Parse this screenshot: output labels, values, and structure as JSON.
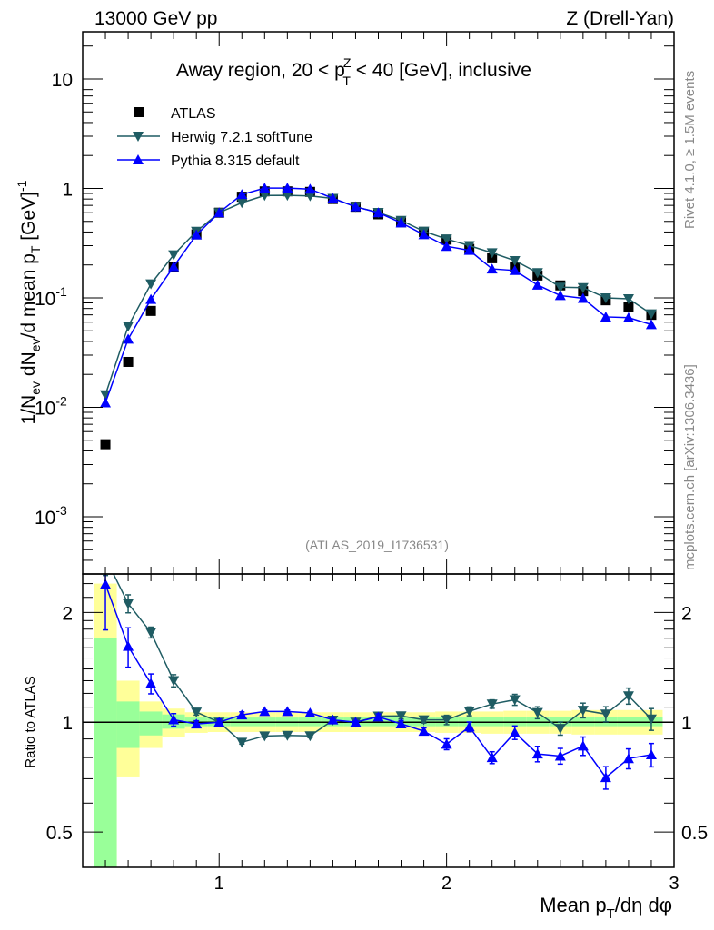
{
  "chart_data": {
    "type": "line",
    "header_left": "13000 GeV pp",
    "header_right": "Z (Drell-Yan)",
    "title": {
      "pre": "Away region, 20 < p",
      "sup": "Z",
      "sub": "T",
      "post": " < 40 [GeV], inclusive"
    },
    "ylabel": {
      "a": "1/N",
      "a_sub": "ev",
      "b": " dN",
      "b_sub": "ev",
      "c": "/d mean p",
      "c_sub": "T",
      "d": " [GeV]",
      "d_sup": "-1"
    },
    "ratio_ylabel": "Ratio to ATLAS",
    "xlabel": {
      "a": "Mean p",
      "a_sub": "T",
      "b": "/dη dφ"
    },
    "side_text_top": "Rivet 4.1.0, ≥ 1.5M events",
    "side_text_bottom": "mcplots.cern.ch [arXiv:1306.3436]",
    "analysis_id": "(ATLAS_2019_I1736531)",
    "xlim": [
      0.4,
      3.0
    ],
    "ylim": [
      0.0003,
      27
    ],
    "ratio_ylim": [
      0.4,
      2.55
    ],
    "yscale": "log",
    "x_ticks": [
      {
        "v": 1,
        "label": "1"
      },
      {
        "v": 2,
        "label": "2"
      },
      {
        "v": 3,
        "label": "3"
      }
    ],
    "y_ticks": [
      {
        "v": 10,
        "base": "10",
        "exp": ""
      },
      {
        "v": 1,
        "base": "1",
        "exp": ""
      },
      {
        "v": 0.1,
        "base": "10",
        "exp": "-1"
      },
      {
        "v": 0.01,
        "base": "10",
        "exp": "-2"
      },
      {
        "v": 0.001,
        "base": "10",
        "exp": "-3"
      }
    ],
    "ratio_y_ticks": [
      {
        "v": 2,
        "label": "2"
      },
      {
        "v": 1,
        "label": "1"
      },
      {
        "v": 0.5,
        "label": "0.5"
      }
    ],
    "legend_position": "top-left",
    "x": [
      0.5,
      0.6,
      0.7,
      0.8,
      0.9,
      1.0,
      1.1,
      1.2,
      1.3,
      1.4,
      1.5,
      1.6,
      1.7,
      1.8,
      1.9,
      2.0,
      2.1,
      2.2,
      2.3,
      2.4,
      2.5,
      2.6,
      2.7,
      2.8,
      2.9
    ],
    "series": [
      {
        "name": "ATLAS",
        "color": "#000000",
        "marker": "square",
        "values": [
          0.0046,
          0.026,
          0.076,
          0.19,
          0.38,
          0.6,
          0.84,
          0.94,
          0.94,
          0.93,
          0.8,
          0.68,
          0.58,
          0.49,
          0.4,
          0.34,
          0.28,
          0.23,
          0.19,
          0.16,
          0.13,
          0.115,
          0.095,
          0.083,
          0.07
        ],
        "band_stat": [
          [
            0.4,
            1.7
          ],
          [
            0.85,
            1.14
          ],
          [
            0.92,
            1.07
          ],
          [
            0.96,
            1.05
          ],
          [
            0.975,
            1.03
          ],
          [
            0.975,
            1.03
          ],
          [
            0.975,
            1.03
          ],
          [
            0.975,
            1.03
          ],
          [
            0.975,
            1.03
          ],
          [
            0.975,
            1.03
          ],
          [
            0.975,
            1.03
          ],
          [
            0.975,
            1.03
          ],
          [
            0.975,
            1.03
          ],
          [
            0.975,
            1.03
          ],
          [
            0.975,
            1.03
          ],
          [
            0.975,
            1.03
          ],
          [
            0.975,
            1.03
          ],
          [
            0.975,
            1.035
          ],
          [
            0.975,
            1.035
          ],
          [
            0.975,
            1.035
          ],
          [
            0.975,
            1.035
          ],
          [
            0.975,
            1.035
          ],
          [
            0.975,
            1.035
          ],
          [
            0.975,
            1.035
          ],
          [
            0.975,
            1.035
          ]
        ],
        "band_total": [
          [
            0.4,
            2.4
          ],
          [
            0.71,
            1.3
          ],
          [
            0.85,
            1.14
          ],
          [
            0.91,
            1.09
          ],
          [
            0.935,
            1.065
          ],
          [
            0.94,
            1.065
          ],
          [
            0.94,
            1.065
          ],
          [
            0.94,
            1.065
          ],
          [
            0.94,
            1.065
          ],
          [
            0.94,
            1.065
          ],
          [
            0.94,
            1.065
          ],
          [
            0.94,
            1.065
          ],
          [
            0.94,
            1.065
          ],
          [
            0.94,
            1.065
          ],
          [
            0.94,
            1.065
          ],
          [
            0.935,
            1.07
          ],
          [
            0.935,
            1.07
          ],
          [
            0.93,
            1.07
          ],
          [
            0.93,
            1.075
          ],
          [
            0.93,
            1.075
          ],
          [
            0.93,
            1.075
          ],
          [
            0.925,
            1.08
          ],
          [
            0.925,
            1.08
          ],
          [
            0.925,
            1.08
          ],
          [
            0.925,
            1.08
          ]
        ]
      },
      {
        "name": "Herwig 7.2.1 softTune",
        "color": "#1f5c63",
        "marker": "triangle-down",
        "values": [
          0.013,
          0.055,
          0.134,
          0.247,
          0.405,
          0.6,
          0.74,
          0.862,
          0.865,
          0.853,
          0.81,
          0.68,
          0.603,
          0.51,
          0.406,
          0.345,
          0.3,
          0.258,
          0.219,
          0.17,
          0.125,
          0.124,
          0.1,
          0.098,
          0.0714
        ],
        "ratio_err": [
          0.3,
          0.12,
          0.06,
          0.05,
          0.02,
          0.02,
          0.01,
          0.01,
          0.01,
          0.01,
          0.01,
          0.01,
          0.02,
          0.02,
          0.02,
          0.03,
          0.03,
          0.03,
          0.04,
          0.04,
          0.04,
          0.05,
          0.05,
          0.06,
          0.07
        ]
      },
      {
        "name": "Pythia 8.315 default",
        "color": "#0000ff",
        "marker": "triangle-up",
        "values": [
          0.011,
          0.042,
          0.097,
          0.193,
          0.376,
          0.6,
          0.88,
          1.006,
          1.006,
          0.986,
          0.812,
          0.68,
          0.6,
          0.485,
          0.378,
          0.296,
          0.272,
          0.184,
          0.178,
          0.131,
          0.105,
          0.099,
          0.067,
          0.066,
          0.057
        ],
        "ratio_err": [
          0.6,
          0.2,
          0.08,
          0.04,
          0.02,
          0.02,
          0.02,
          0.01,
          0.01,
          0.01,
          0.01,
          0.01,
          0.02,
          0.02,
          0.02,
          0.03,
          0.03,
          0.03,
          0.04,
          0.04,
          0.04,
          0.05,
          0.05,
          0.05,
          0.06
        ]
      }
    ]
  }
}
